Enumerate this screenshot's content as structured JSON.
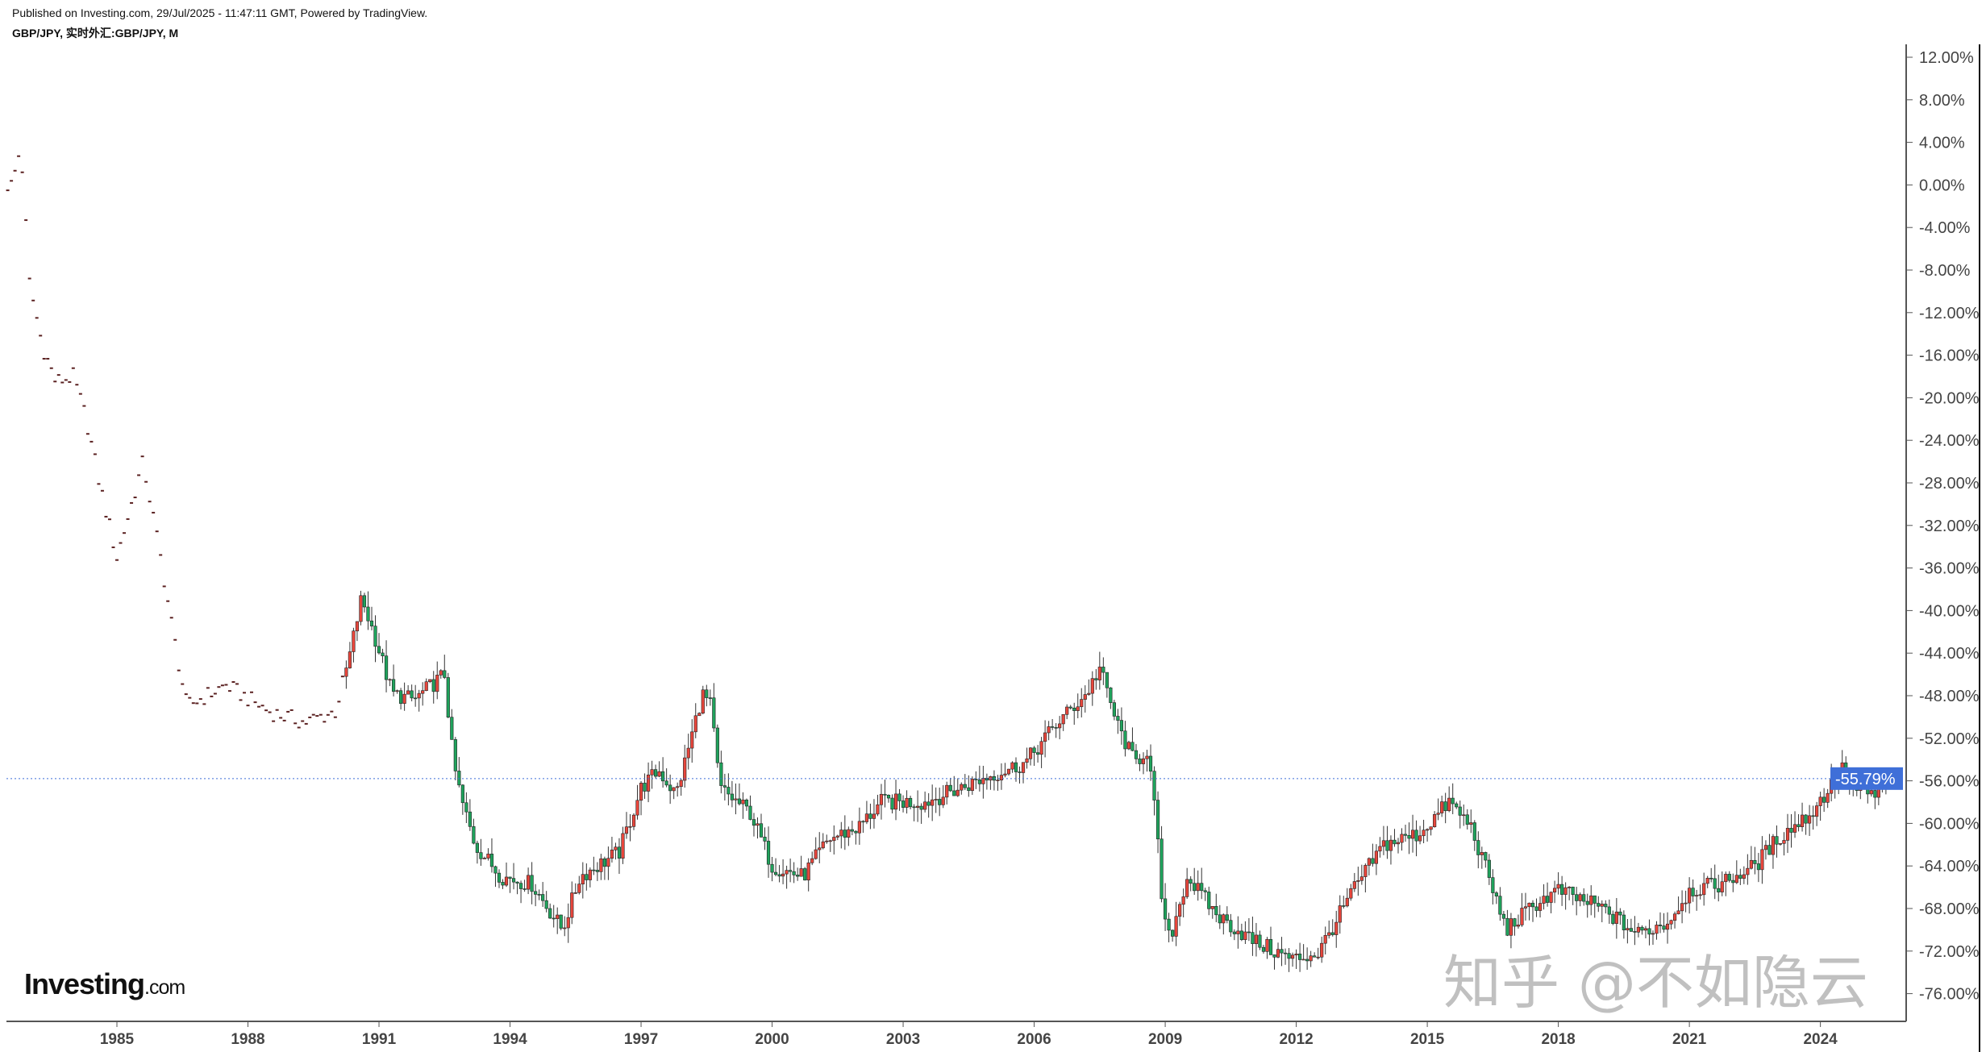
{
  "header": {
    "published": "Published on Investing.com, 29/Jul/2025 - 11:47:11 GMT, Powered by TradingView.",
    "symbol": "GBP/JPY, 实时外汇:GBP/JPY, M"
  },
  "logo": {
    "brand": "Investing",
    "suffix": ".com"
  },
  "watermark": "知乎 @不如隐云",
  "colors": {
    "up": "#e8463c",
    "down": "#1fa35c",
    "wick": "#333333",
    "last_price_label": "#3f6fd8",
    "axis": "#555555"
  },
  "chart_data": {
    "type": "candlestick",
    "interval": "monthly",
    "title": "",
    "xlabel": "",
    "ylabel": "",
    "x_ticks": [
      "1985",
      "1988",
      "1991",
      "1994",
      "1997",
      "2000",
      "2003",
      "2006",
      "2009",
      "2012",
      "2015",
      "2018",
      "2021",
      "2024"
    ],
    "y_ticks": [
      "12.00%",
      "8.00%",
      "4.00%",
      "0.00%",
      "-4.00%",
      "-8.00%",
      "-12.00%",
      "-16.00%",
      "-20.00%",
      "-24.00%",
      "-28.00%",
      "-32.00%",
      "-36.00%",
      "-40.00%",
      "-44.00%",
      "-48.00%",
      "-52.00%",
      "-56.00%",
      "-60.00%",
      "-64.00%",
      "-68.00%",
      "-72.00%",
      "-76.00%"
    ],
    "ylim": [
      -78,
      13
    ],
    "xlim": [
      1982.5,
      2025.9
    ],
    "y_scale": "percent change",
    "grid": false,
    "last_value": -55.79,
    "last_value_label": "-55.79%",
    "approx_close_series": [
      [
        1982.6,
        0
      ],
      [
        1982.8,
        3.7
      ],
      [
        1983.0,
        -9.2
      ],
      [
        1983.3,
        -15.2
      ],
      [
        1983.6,
        -18.5
      ],
      [
        1984.0,
        -18
      ],
      [
        1984.3,
        -22
      ],
      [
        1984.6,
        -28
      ],
      [
        1985.0,
        -35
      ],
      [
        1985.3,
        -30.5
      ],
      [
        1985.6,
        -26
      ],
      [
        1986.0,
        -35
      ],
      [
        1986.3,
        -42.4
      ],
      [
        1986.6,
        -49
      ],
      [
        1987.5,
        -47
      ],
      [
        1988.5,
        -49.5
      ],
      [
        1989.3,
        -50.5
      ],
      [
        1990.0,
        -49.5
      ],
      [
        1990.3,
        -44.8
      ],
      [
        1990.6,
        -38.8
      ],
      [
        1990.9,
        -42.4
      ],
      [
        1991.3,
        -47.8
      ],
      [
        1991.8,
        -48.4
      ],
      [
        1992.5,
        -46
      ],
      [
        1992.7,
        -54.3
      ],
      [
        1992.9,
        -58
      ],
      [
        1993.2,
        -62
      ],
      [
        1993.8,
        -65
      ],
      [
        1994.5,
        -65.7
      ],
      [
        1995.2,
        -70
      ],
      [
        1995.6,
        -65
      ],
      [
        1996.5,
        -62.7
      ],
      [
        1997.0,
        -56.7
      ],
      [
        1997.4,
        -55
      ],
      [
        1997.8,
        -57.3
      ],
      [
        1998.0,
        -54.3
      ],
      [
        1998.4,
        -47.8
      ],
      [
        1998.6,
        -49
      ],
      [
        1998.8,
        -56.7
      ],
      [
        1999.5,
        -59
      ],
      [
        2000.0,
        -64
      ],
      [
        2000.7,
        -65
      ],
      [
        2001.3,
        -61.5
      ],
      [
        2002.0,
        -60.3
      ],
      [
        2002.5,
        -58
      ],
      [
        2003.5,
        -58
      ],
      [
        2004.3,
        -56.7
      ],
      [
        2005.0,
        -55.5
      ],
      [
        2005.8,
        -54.3
      ],
      [
        2006.5,
        -50.7
      ],
      [
        2007.2,
        -47.8
      ],
      [
        2007.5,
        -45.4
      ],
      [
        2007.9,
        -50.7
      ],
      [
        2008.3,
        -54.3
      ],
      [
        2008.6,
        -53
      ],
      [
        2008.8,
        -60.3
      ],
      [
        2008.95,
        -68.7
      ],
      [
        2009.1,
        -71
      ],
      [
        2009.5,
        -65
      ],
      [
        2010.2,
        -68.7
      ],
      [
        2011.0,
        -71
      ],
      [
        2011.9,
        -72.8
      ],
      [
        2012.5,
        -72.2
      ],
      [
        2013.3,
        -66.3
      ],
      [
        2014.0,
        -62
      ],
      [
        2014.8,
        -61
      ],
      [
        2015.5,
        -58
      ],
      [
        2016.0,
        -60.3
      ],
      [
        2016.4,
        -65
      ],
      [
        2016.8,
        -70
      ],
      [
        2017.5,
        -67.5
      ],
      [
        2018.0,
        -66.3
      ],
      [
        2019.0,
        -68
      ],
      [
        2019.8,
        -70.4
      ],
      [
        2020.5,
        -69.3
      ],
      [
        2021.0,
        -66.3
      ],
      [
        2021.7,
        -65.7
      ],
      [
        2022.5,
        -64
      ],
      [
        2023.0,
        -61.5
      ],
      [
        2023.8,
        -59
      ],
      [
        2024.5,
        -55
      ],
      [
        2024.9,
        -57.3
      ],
      [
        2025.3,
        -57.3
      ],
      [
        2025.58,
        -55.79
      ]
    ]
  }
}
